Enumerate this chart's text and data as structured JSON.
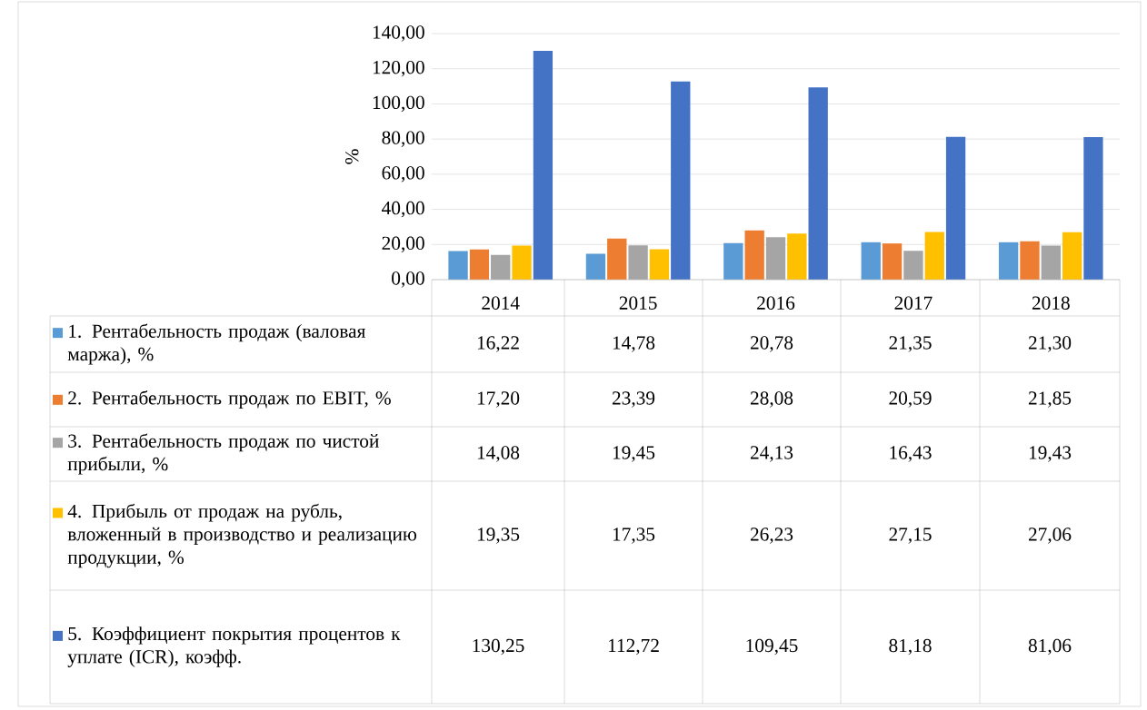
{
  "chart_data": {
    "type": "bar",
    "ylabel": "%",
    "categories": [
      "2014",
      "2015",
      "2016",
      "2017",
      "2018"
    ],
    "series": [
      {
        "name": "1. Рентабельность продаж (валовая маржа), %",
        "color": "#5b9bd5",
        "values": [
          16.22,
          14.78,
          20.78,
          21.35,
          21.3
        ],
        "value_labels": [
          "16,22",
          "14,78",
          "20,78",
          "21,35",
          "21,30"
        ]
      },
      {
        "name": "2. Рентабельность продаж по EBIT, %",
        "color": "#ed7d31",
        "values": [
          17.2,
          23.39,
          28.08,
          20.59,
          21.85
        ],
        "value_labels": [
          "17,20",
          "23,39",
          "28,08",
          "20,59",
          "21,85"
        ]
      },
      {
        "name": "3. Рентабельность продаж по чистой прибыли, %",
        "color": "#a5a5a5",
        "values": [
          14.08,
          19.45,
          24.13,
          16.43,
          19.43
        ],
        "value_labels": [
          "14,08",
          "19,45",
          "24,13",
          "16,43",
          "19,43"
        ]
      },
      {
        "name": "4. Прибыль от продаж на рубль, вложенный в производство и реализацию продукции, %",
        "color": "#ffc000",
        "values": [
          19.35,
          17.35,
          26.23,
          27.15,
          27.06
        ],
        "value_labels": [
          "19,35",
          "17,35",
          "26,23",
          "27,15",
          "27,06"
        ]
      },
      {
        "name": "5. Коэффициент покрытия процентов к уплате (ICR), коэфф.",
        "color": "#4472c4",
        "values": [
          130.25,
          112.72,
          109.45,
          81.18,
          81.06
        ],
        "value_labels": [
          "130,25",
          "112,72",
          "109,45",
          "81,18",
          "81,06"
        ]
      }
    ],
    "ylim": [
      0,
      140
    ],
    "yticks": [
      {
        "value": 0,
        "label": "0,00"
      },
      {
        "value": 20,
        "label": "20,00"
      },
      {
        "value": 40,
        "label": "40,00"
      },
      {
        "value": 60,
        "label": "60,00"
      },
      {
        "value": 80,
        "label": "80,00"
      },
      {
        "value": 100,
        "label": "100,00"
      },
      {
        "value": 120,
        "label": "120,00"
      },
      {
        "value": 140,
        "label": "140,00"
      }
    ],
    "grid": "y",
    "legend": "bottom"
  }
}
